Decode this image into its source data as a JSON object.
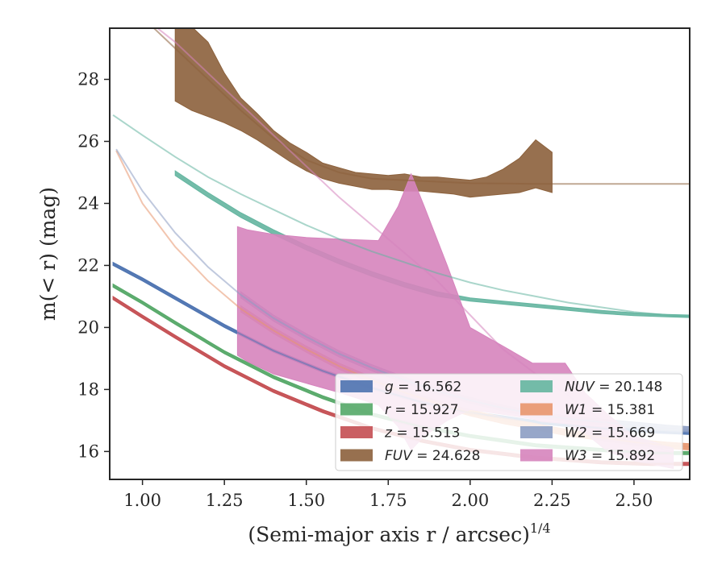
{
  "chart_data": {
    "type": "area",
    "xlabel": "(Semi-major axis r / arcsec)",
    "xlabel_exponent": "1/4",
    "ylabel": "m(< r) (mag)",
    "xlim": [
      0.9,
      2.67
    ],
    "ylim": [
      29.65,
      15.1
    ],
    "y_inverted": true,
    "grid": false,
    "legend_position": "lower-right",
    "x_ticks": [
      "1.00",
      "1.25",
      "1.50",
      "1.75",
      "2.00",
      "2.25",
      "2.50"
    ],
    "x_tick_values": [
      1.0,
      1.25,
      1.5,
      1.75,
      2.0,
      2.25,
      2.5
    ],
    "y_ticks": [
      "16",
      "18",
      "20",
      "22",
      "24",
      "26",
      "28"
    ],
    "y_tick_values": [
      16,
      18,
      20,
      22,
      24,
      26,
      28
    ],
    "series": [
      {
        "name": "g = 16.562",
        "legend_symbol": "g",
        "legend_value": "16.562",
        "color": "#4c72b0",
        "model_x": [
          0.91,
          1.0,
          1.1,
          1.25,
          1.4,
          1.55,
          1.7,
          1.85,
          2.0,
          2.2,
          2.4,
          2.55,
          2.67
        ],
        "model_y": [
          22.05,
          21.55,
          20.95,
          20.05,
          19.25,
          18.6,
          18.05,
          17.6,
          17.25,
          16.95,
          16.75,
          16.65,
          16.6
        ],
        "band_x": [
          0.91,
          1.0,
          1.1,
          1.25,
          1.4,
          1.55,
          1.7,
          1.85,
          2.0,
          2.2,
          2.4,
          2.55,
          2.67
        ],
        "band_upper": [
          22.0,
          21.5,
          20.9,
          20.0,
          19.2,
          18.55,
          18.0,
          17.55,
          17.2,
          16.9,
          16.7,
          16.6,
          16.55
        ],
        "band_lower": [
          22.1,
          21.6,
          21.0,
          20.1,
          19.3,
          18.65,
          18.1,
          17.65,
          17.3,
          17.0,
          16.8,
          16.7,
          16.65
        ]
      },
      {
        "name": "r = 15.927",
        "legend_symbol": "r",
        "legend_value": "15.927",
        "color": "#55a868",
        "model_x": [
          0.91,
          1.0,
          1.1,
          1.25,
          1.4,
          1.55,
          1.7,
          1.85,
          2.0,
          2.2,
          2.4,
          2.55,
          2.67
        ],
        "model_y": [
          21.35,
          20.8,
          20.15,
          19.2,
          18.4,
          17.75,
          17.2,
          16.8,
          16.5,
          16.2,
          16.05,
          15.95,
          15.95
        ],
        "band_x": [
          0.91,
          1.0,
          1.1,
          1.25,
          1.4,
          1.55,
          1.7,
          1.85,
          2.0,
          2.2,
          2.4,
          2.55,
          2.67
        ],
        "band_upper": [
          21.3,
          20.75,
          20.1,
          19.15,
          18.35,
          17.7,
          17.15,
          16.75,
          16.45,
          16.15,
          16.0,
          15.9,
          15.9
        ],
        "band_lower": [
          21.4,
          20.85,
          20.2,
          19.25,
          18.45,
          17.8,
          17.25,
          16.85,
          16.55,
          16.25,
          16.1,
          16.0,
          16.0
        ]
      },
      {
        "name": "z = 15.513",
        "legend_symbol": "z",
        "legend_value": "15.513",
        "color": "#c44e52",
        "model_x": [
          0.91,
          1.0,
          1.1,
          1.25,
          1.4,
          1.55,
          1.7,
          1.85,
          2.0,
          2.2,
          2.4,
          2.55,
          2.67
        ],
        "model_y": [
          20.95,
          20.35,
          19.7,
          18.75,
          17.95,
          17.3,
          16.75,
          16.35,
          16.05,
          15.8,
          15.65,
          15.6,
          15.6
        ],
        "band_x": [
          0.91,
          1.0,
          1.1,
          1.25,
          1.4,
          1.55,
          1.7,
          1.85,
          2.0,
          2.2,
          2.4,
          2.55,
          2.67
        ],
        "band_upper": [
          20.9,
          20.3,
          19.65,
          18.7,
          17.9,
          17.25,
          16.7,
          16.3,
          16.0,
          15.75,
          15.6,
          15.55,
          15.55
        ],
        "band_lower": [
          21.0,
          20.4,
          19.75,
          18.8,
          18.0,
          17.35,
          16.8,
          16.4,
          16.1,
          15.85,
          15.7,
          15.65,
          15.65
        ]
      },
      {
        "name": "FUV = 24.628",
        "legend_symbol": "FUV",
        "legend_value": "24.628",
        "color": "#8c613c",
        "model_x": [
          1.02,
          1.1,
          1.2,
          1.3,
          1.4,
          1.5,
          1.6,
          1.7,
          1.8,
          1.9,
          2.0,
          2.1,
          2.2,
          2.25,
          2.67
        ],
        "model_y": [
          29.8,
          29.0,
          28.0,
          27.0,
          26.1,
          25.4,
          25.0,
          24.8,
          24.75,
          24.7,
          24.65,
          24.64,
          24.63,
          24.63,
          24.63
        ],
        "band_x": [
          1.1,
          1.15,
          1.2,
          1.25,
          1.3,
          1.35,
          1.4,
          1.45,
          1.5,
          1.55,
          1.6,
          1.65,
          1.7,
          1.75,
          1.8,
          1.85,
          1.9,
          1.95,
          2.0,
          2.05,
          2.1,
          2.15,
          2.2,
          2.25
        ],
        "band_upper": [
          27.3,
          27.0,
          26.8,
          26.6,
          26.35,
          26.05,
          25.7,
          25.35,
          25.05,
          24.8,
          24.65,
          24.55,
          24.45,
          24.45,
          24.4,
          24.4,
          24.35,
          24.3,
          24.2,
          24.25,
          24.3,
          24.35,
          24.5,
          24.35
        ],
        "band_lower": [
          29.8,
          29.7,
          29.2,
          28.2,
          27.4,
          26.9,
          26.35,
          25.95,
          25.65,
          25.3,
          25.15,
          25.0,
          24.95,
          24.9,
          24.95,
          24.85,
          24.85,
          24.8,
          24.75,
          24.85,
          25.1,
          25.45,
          26.05,
          25.65
        ]
      },
      {
        "name": "NUV = 20.148",
        "legend_symbol": "NUV",
        "legend_value": "20.148",
        "color": "#64b5a0",
        "model_x": [
          0.91,
          1.0,
          1.1,
          1.2,
          1.3,
          1.4,
          1.5,
          1.6,
          1.7,
          1.8,
          1.9,
          2.0,
          2.1,
          2.2,
          2.3,
          2.4,
          2.5,
          2.6,
          2.67
        ],
        "model_y": [
          26.85,
          26.2,
          25.5,
          24.85,
          24.3,
          23.8,
          23.3,
          22.85,
          22.45,
          22.1,
          21.75,
          21.45,
          21.2,
          21.0,
          20.8,
          20.65,
          20.5,
          20.4,
          20.35
        ],
        "band_x": [
          1.1,
          1.2,
          1.3,
          1.4,
          1.5,
          1.6,
          1.7,
          1.8,
          1.9,
          2.0,
          2.1,
          2.2,
          2.3,
          2.4,
          2.5,
          2.6,
          2.67
        ],
        "band_upper": [
          24.9,
          24.2,
          23.55,
          23.0,
          22.5,
          22.05,
          21.65,
          21.3,
          21.0,
          20.85,
          20.75,
          20.65,
          20.55,
          20.45,
          20.38,
          20.34,
          20.32
        ],
        "band_lower": [
          25.05,
          24.35,
          23.7,
          23.15,
          22.65,
          22.2,
          21.8,
          21.45,
          21.15,
          20.95,
          20.85,
          20.75,
          20.65,
          20.55,
          20.47,
          20.42,
          20.4
        ]
      },
      {
        "name": "W1 = 15.381",
        "legend_symbol": "W1",
        "legend_value": "15.381",
        "color": "#e8956d",
        "model_x": [
          0.92,
          1.0,
          1.1,
          1.2,
          1.3,
          1.4,
          1.5,
          1.6,
          1.7,
          1.8,
          1.9,
          2.0,
          2.1,
          2.2,
          2.3,
          2.4,
          2.5,
          2.6,
          2.67
        ],
        "model_y": [
          25.7,
          24.0,
          22.6,
          21.5,
          20.6,
          19.9,
          19.3,
          18.75,
          18.3,
          17.9,
          17.55,
          17.25,
          17.0,
          16.8,
          16.6,
          16.45,
          16.3,
          16.2,
          16.15
        ],
        "band_x": [
          1.3,
          1.4,
          1.5,
          1.6,
          1.7,
          1.8,
          1.9,
          2.0,
          2.1,
          2.2,
          2.3,
          2.4,
          2.5,
          2.6,
          2.67
        ],
        "band_upper": [
          20.5,
          19.8,
          19.2,
          18.65,
          18.2,
          17.8,
          17.45,
          17.15,
          16.9,
          16.7,
          16.5,
          16.35,
          16.2,
          16.1,
          16.05
        ],
        "band_lower": [
          20.7,
          20.0,
          19.4,
          18.85,
          18.4,
          18.0,
          17.65,
          17.35,
          17.1,
          16.9,
          16.7,
          16.55,
          16.4,
          16.3,
          16.25
        ]
      },
      {
        "name": "W2 = 15.669",
        "legend_symbol": "W2",
        "legend_value": "15.669",
        "color": "#8c9dc3",
        "model_x": [
          0.92,
          1.0,
          1.1,
          1.2,
          1.3,
          1.4,
          1.5,
          1.6,
          1.7,
          1.8,
          1.9,
          2.0,
          2.1,
          2.2,
          2.3,
          2.4,
          2.5,
          2.6,
          2.67
        ],
        "model_y": [
          25.75,
          24.4,
          23.05,
          21.95,
          21.05,
          20.3,
          19.7,
          19.15,
          18.7,
          18.3,
          17.95,
          17.65,
          17.4,
          17.2,
          17.05,
          16.95,
          16.85,
          16.75,
          16.7
        ],
        "band_x": [
          1.3,
          1.4,
          1.5,
          1.6,
          1.7,
          1.8,
          1.9,
          2.0,
          2.1,
          2.2,
          2.3,
          2.4,
          2.5,
          2.6,
          2.67
        ],
        "band_upper": [
          20.95,
          20.2,
          19.6,
          19.05,
          18.6,
          18.2,
          17.85,
          17.55,
          17.3,
          17.1,
          16.95,
          16.85,
          16.75,
          16.65,
          16.6
        ],
        "band_lower": [
          21.15,
          20.4,
          19.8,
          19.25,
          18.8,
          18.4,
          18.05,
          17.75,
          17.5,
          17.3,
          17.15,
          17.05,
          16.95,
          16.85,
          16.8
        ]
      },
      {
        "name": "W3 = 15.892",
        "legend_symbol": "W3",
        "legend_value": "15.892",
        "color": "#d684bd",
        "model_x": [
          1.04,
          1.1,
          1.2,
          1.3,
          1.4,
          1.5,
          1.6,
          1.7,
          1.8,
          1.9,
          2.0,
          2.1,
          2.2,
          2.3,
          2.4,
          2.5,
          2.62
        ],
        "model_y": [
          29.7,
          29.2,
          28.2,
          27.2,
          26.2,
          25.2,
          24.2,
          23.3,
          22.4,
          21.5,
          20.4,
          19.3,
          18.5,
          17.8,
          17.0,
          16.4,
          15.95
        ],
        "band_x": [
          1.29,
          1.32,
          1.4,
          1.5,
          1.6,
          1.72,
          1.78,
          1.82,
          1.86,
          1.93,
          2.0,
          2.1,
          2.19,
          2.22,
          2.29,
          2.35,
          2.42,
          2.5,
          2.62
        ],
        "band_upper": [
          19.1,
          18.9,
          18.5,
          18.2,
          17.9,
          17.5,
          16.8,
          16.05,
          16.5,
          17.0,
          17.35,
          17.2,
          17.05,
          16.95,
          16.9,
          16.6,
          16.0,
          15.7,
          15.45
        ],
        "band_lower": [
          23.25,
          23.15,
          23.0,
          22.9,
          22.85,
          22.8,
          23.9,
          24.95,
          23.9,
          22.0,
          20.0,
          19.4,
          18.85,
          18.85,
          18.85,
          17.9,
          17.2,
          16.5,
          16.1
        ]
      }
    ]
  }
}
